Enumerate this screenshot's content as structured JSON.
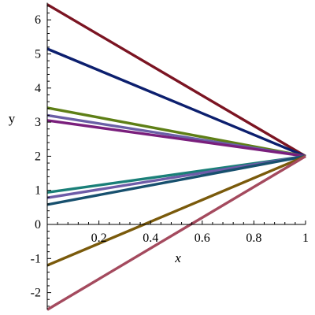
{
  "chart_data": {
    "type": "line",
    "title": "",
    "xlabel": "x",
    "ylabel": "y",
    "xlim": [
      0,
      1
    ],
    "ylim": [
      -2.5,
      6.5
    ],
    "x_ticks": [
      "0.2",
      "0.4",
      "0.6",
      "0.8",
      "1"
    ],
    "y_ticks": [
      "-2",
      "-1",
      "0",
      "1",
      "2",
      "3",
      "4",
      "5",
      "6"
    ],
    "grid": false,
    "series": [
      {
        "x": [
          0,
          1
        ],
        "y": [
          6.45,
          2.0
        ],
        "color": "#7b1422"
      },
      {
        "x": [
          0,
          1
        ],
        "y": [
          5.15,
          2.0
        ],
        "color": "#0c1f6e"
      },
      {
        "x": [
          0,
          1
        ],
        "y": [
          3.42,
          2.0
        ],
        "color": "#5e7f16"
      },
      {
        "x": [
          0,
          1
        ],
        "y": [
          3.2,
          2.0
        ],
        "color": "#6a5fa6"
      },
      {
        "x": [
          0,
          1
        ],
        "y": [
          3.05,
          2.0
        ],
        "color": "#7a1f7c"
      },
      {
        "x": [
          0,
          1
        ],
        "y": [
          0.94,
          2.0
        ],
        "color": "#1a7f78"
      },
      {
        "x": [
          0,
          1
        ],
        "y": [
          0.78,
          2.0
        ],
        "color": "#6e5ca8"
      },
      {
        "x": [
          0,
          1
        ],
        "y": [
          0.58,
          2.0
        ],
        "color": "#17506e"
      },
      {
        "x": [
          0,
          1
        ],
        "y": [
          -1.2,
          2.0
        ],
        "color": "#7a5a0b"
      },
      {
        "x": [
          0,
          1
        ],
        "y": [
          -2.5,
          2.0
        ],
        "color": "#a44a5e"
      }
    ]
  }
}
